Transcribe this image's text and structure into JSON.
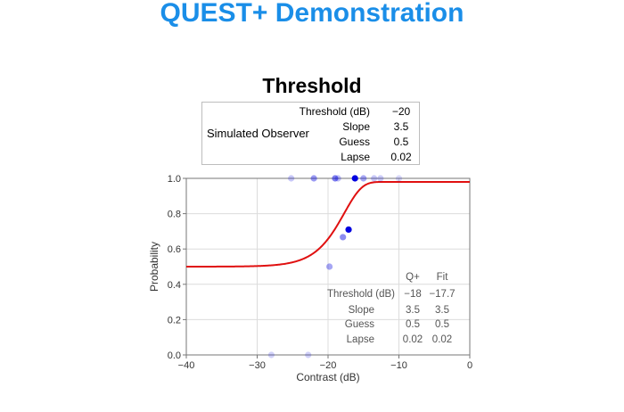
{
  "app": {
    "title": "QUEST",
    "title_plus": "+",
    "title_rest": " Demonstration",
    "accent_color": "#1a8ee8"
  },
  "chart_title": "Threshold",
  "observer": {
    "label": "Simulated Observer",
    "rows": [
      {
        "k": "Threshold (dB)",
        "v": "−20"
      },
      {
        "k": "Slope",
        "v": "3.5"
      },
      {
        "k": "Guess",
        "v": "0.5"
      },
      {
        "k": "Lapse",
        "v": "0.02"
      }
    ]
  },
  "fit_table": {
    "headers": [
      "Q+",
      "Fit"
    ],
    "rows": [
      {
        "k": "Threshold (dB)",
        "q": "−18",
        "fit": "−17.7"
      },
      {
        "k": "Slope",
        "q": "3.5",
        "fit": "3.5"
      },
      {
        "k": "Guess",
        "q": "0.5",
        "fit": "0.5"
      },
      {
        "k": "Lapse",
        "q": "0.02",
        "fit": "0.02"
      }
    ]
  },
  "chart_data": {
    "type": "scatter",
    "xlabel": "Contrast (dB)",
    "ylabel": "Probability",
    "xlim": [
      -40,
      0
    ],
    "ylim": [
      0,
      1
    ],
    "xticks": [
      -40,
      -30,
      -20,
      -10,
      0
    ],
    "xtick_labels": [
      "−40",
      "−30",
      "−20",
      "−10",
      "0"
    ],
    "yticks": [
      0,
      0.2,
      0.4,
      0.6,
      0.8,
      1.0
    ],
    "ytick_labels": [
      "0.0",
      "0.2",
      "0.4",
      "0.6",
      "0.8",
      "1.0"
    ],
    "grid": true,
    "curve": {
      "function": "weibull",
      "threshold_db": -17.7,
      "slope": 3.5,
      "guess": 0.5,
      "lapse": 0.02,
      "color": "#e01010"
    },
    "points": [
      {
        "x": -25.2,
        "y": 1.0,
        "a": 0.22
      },
      {
        "x": -22.0,
        "y": 1.0,
        "a": 0.4
      },
      {
        "x": -19.0,
        "y": 1.0,
        "a": 0.5
      },
      {
        "x": -18.6,
        "y": 1.0,
        "a": 0.25
      },
      {
        "x": -16.2,
        "y": 1.0,
        "a": 1.0
      },
      {
        "x": -15.0,
        "y": 1.0,
        "a": 0.35
      },
      {
        "x": -13.5,
        "y": 1.0,
        "a": 0.22
      },
      {
        "x": -12.6,
        "y": 1.0,
        "a": 0.2
      },
      {
        "x": -10.0,
        "y": 1.0,
        "a": 0.15
      },
      {
        "x": -17.1,
        "y": 0.71,
        "a": 1.0
      },
      {
        "x": -17.9,
        "y": 0.667,
        "a": 0.45
      },
      {
        "x": -19.8,
        "y": 0.5,
        "a": 0.35
      },
      {
        "x": -28.0,
        "y": 0.0,
        "a": 0.18
      },
      {
        "x": -22.8,
        "y": 0.0,
        "a": 0.18
      }
    ],
    "point_color": "#0000e0"
  }
}
